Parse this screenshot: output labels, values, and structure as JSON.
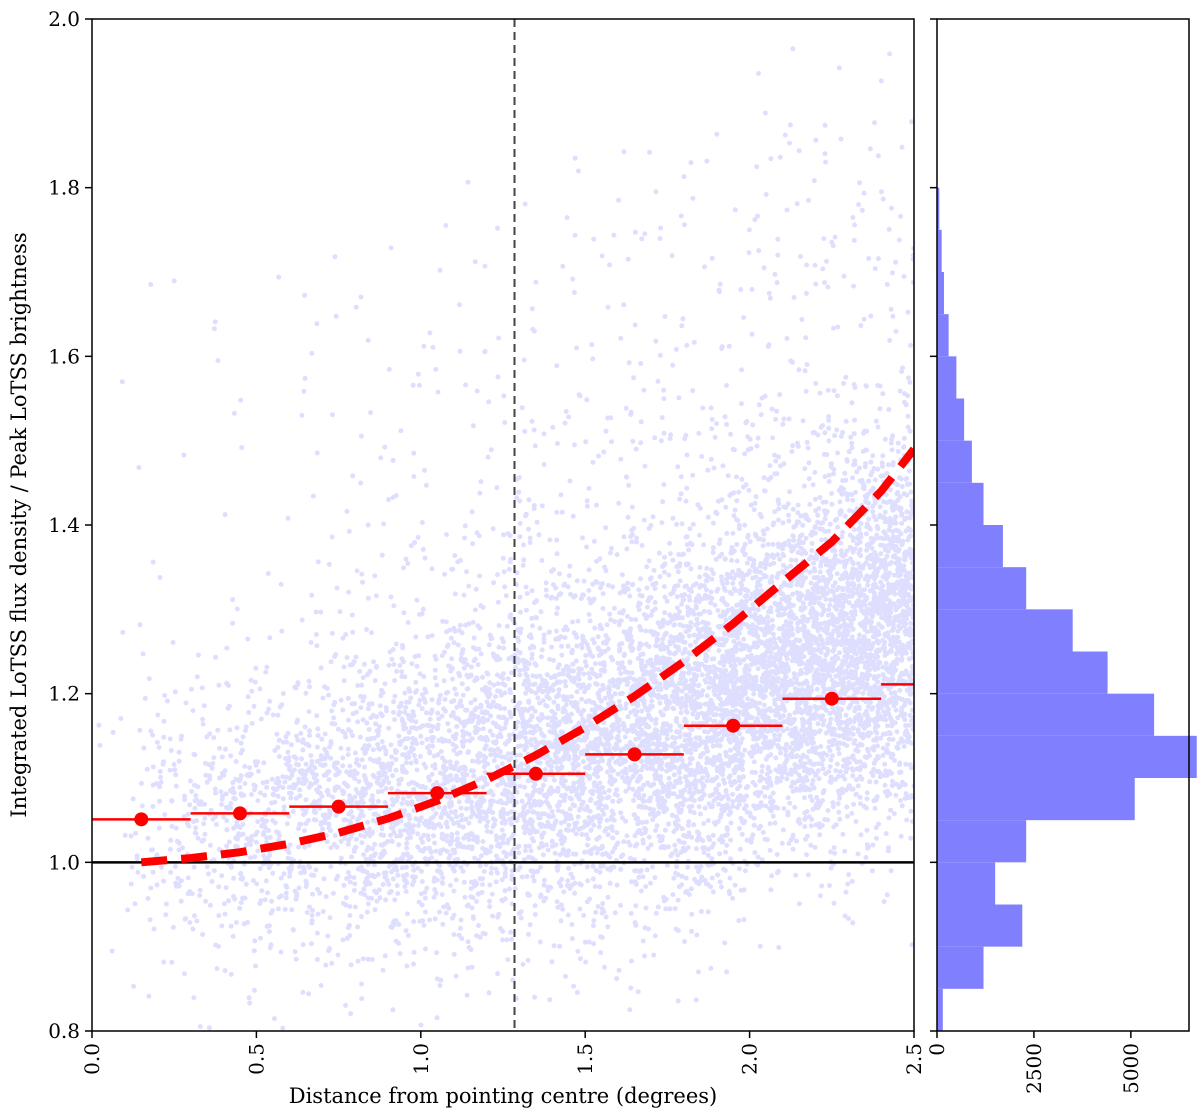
{
  "chart_data": [
    {
      "type": "scatter",
      "title": "",
      "xlabel": "Distance from pointing centre (degrees)",
      "ylabel": "Integrated LoTSS flux density / Peak LoTSS brightness",
      "xlim": [
        0.0,
        2.5
      ],
      "ylim": [
        0.8,
        2.0
      ],
      "x_ticks": [
        "0.0",
        "0.5",
        "1.0",
        "1.5",
        "2.0",
        "2.5"
      ],
      "y_ticks": [
        "0.8",
        "1.0",
        "1.2",
        "1.4",
        "1.6",
        "1.8",
        "2.0"
      ],
      "grid": false,
      "legend": "none",
      "scatter_color": "#0000ff",
      "scatter_alpha": 0.1,
      "scatter_n_points_approx": 25000,
      "reference_lines": [
        {
          "orientation": "horizontal",
          "value": 1.0,
          "style": "solid",
          "color": "#000000"
        },
        {
          "orientation": "vertical",
          "value": 1.285,
          "style": "dashed",
          "color": "#444444"
        }
      ],
      "binned_medians": {
        "color": "#ff0000",
        "x": [
          0.15,
          0.45,
          0.75,
          1.05,
          1.35,
          1.65,
          1.95,
          2.25,
          2.55
        ],
        "y": [
          1.051,
          1.058,
          1.066,
          1.082,
          1.105,
          1.128,
          1.162,
          1.194,
          1.211
        ],
        "xerr": 0.15
      },
      "fitted_curve": {
        "color": "#ff0000",
        "style": "dashed",
        "x": [
          0.15,
          0.3,
          0.45,
          0.6,
          0.75,
          0.9,
          1.05,
          1.2,
          1.35,
          1.5,
          1.65,
          1.8,
          1.95,
          2.1,
          2.25,
          2.4,
          2.5
        ],
        "y": [
          1.0,
          1.005,
          1.012,
          1.022,
          1.035,
          1.052,
          1.073,
          1.098,
          1.127,
          1.16,
          1.197,
          1.238,
          1.283,
          1.332,
          1.38,
          1.44,
          1.49
        ]
      }
    },
    {
      "type": "bar",
      "orientation": "horizontal",
      "title": "",
      "xlabel": "",
      "ylabel": "",
      "ylim": [
        0.8,
        2.0
      ],
      "xlim": [
        0,
        6500
      ],
      "x_ticks": [
        "0",
        "2500",
        "5000"
      ],
      "color": "#8080ff",
      "bin_edges": [
        0.8,
        0.85,
        0.9,
        0.95,
        1.0,
        1.05,
        1.1,
        1.15,
        1.2,
        1.25,
        1.3,
        1.35,
        1.4,
        1.45,
        1.5,
        1.55,
        1.6,
        1.65,
        1.7,
        1.75,
        1.8
      ],
      "counts": [
        150,
        1200,
        2200,
        1500,
        2300,
        5100,
        6700,
        5600,
        4400,
        3500,
        2300,
        1700,
        1200,
        900,
        700,
        500,
        300,
        180,
        120,
        60
      ]
    }
  ]
}
